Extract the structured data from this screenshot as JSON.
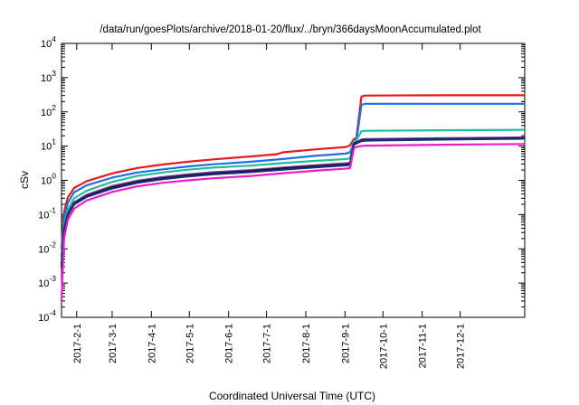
{
  "chart_data": {
    "type": "line",
    "title": "/data/run/goesPlots/archive/2018-01-20/flux/../bryn/366daysMoonAccumulated.plot",
    "xlabel": "Coordinated Universal Time (UTC)",
    "ylabel": "cSv",
    "yscale": "log",
    "ylim": [
      0.0001,
      10000
    ],
    "xlim_days": [
      0,
      366
    ],
    "start_date": "2017-01-20",
    "grid": false,
    "legend": "none",
    "y_ticks": [
      {
        "value": 0.0001,
        "base": "10",
        "exp": "-4"
      },
      {
        "value": 0.001,
        "base": "10",
        "exp": "-3"
      },
      {
        "value": 0.01,
        "base": "10",
        "exp": "-2"
      },
      {
        "value": 0.1,
        "base": "10",
        "exp": "-1"
      },
      {
        "value": 1,
        "base": "10",
        "exp": "0"
      },
      {
        "value": 10,
        "base": "10",
        "exp": "1"
      },
      {
        "value": 100,
        "base": "10",
        "exp": "2"
      },
      {
        "value": 1000,
        "base": "10",
        "exp": "3"
      },
      {
        "value": 10000,
        "base": "10",
        "exp": "4"
      }
    ],
    "x_ticks": [
      {
        "label": "2017-2-1",
        "day": 12
      },
      {
        "label": "2017-3-1",
        "day": 40
      },
      {
        "label": "2017-4-1",
        "day": 71
      },
      {
        "label": "2017-5-1",
        "day": 101
      },
      {
        "label": "2017-6-1",
        "day": 132
      },
      {
        "label": "2017-7-1",
        "day": 162
      },
      {
        "label": "2017-8-1",
        "day": 193
      },
      {
        "label": "2017-9-1",
        "day": 224
      },
      {
        "label": "2017-10-1",
        "day": 254
      },
      {
        "label": "2017-11-1",
        "day": 285
      },
      {
        "label": "2017-12-1",
        "day": 315
      }
    ],
    "series": [
      {
        "name": "red",
        "color": "#e41a1c",
        "x": [
          0,
          2,
          5,
          10,
          20,
          40,
          60,
          80,
          100,
          120,
          150,
          170,
          175,
          200,
          225,
          228,
          231,
          233,
          237,
          240,
          300,
          366
        ],
        "y": [
          0.01,
          0.12,
          0.32,
          0.6,
          0.95,
          1.6,
          2.3,
          2.9,
          3.5,
          4.1,
          5.0,
          5.8,
          6.6,
          8.0,
          9.4,
          10.5,
          16,
          17,
          280,
          300,
          305,
          305
        ]
      },
      {
        "name": "blue",
        "color": "#1f6fe0",
        "x": [
          0,
          2,
          5,
          10,
          20,
          40,
          60,
          80,
          100,
          120,
          150,
          175,
          200,
          225,
          228,
          231,
          233,
          237,
          240,
          300,
          366
        ],
        "y": [
          0.006,
          0.08,
          0.22,
          0.45,
          0.72,
          1.2,
          1.7,
          2.1,
          2.55,
          2.95,
          3.5,
          4.2,
          5.2,
          6.1,
          6.7,
          13,
          14,
          160,
          172,
          172,
          172
        ]
      },
      {
        "name": "teal",
        "color": "#1fbf99",
        "x": [
          0,
          2,
          5,
          10,
          20,
          40,
          60,
          80,
          100,
          120,
          150,
          175,
          200,
          225,
          228,
          231,
          233,
          237,
          240,
          300,
          366
        ],
        "y": [
          0.004,
          0.05,
          0.14,
          0.3,
          0.5,
          0.9,
          1.35,
          1.7,
          2.05,
          2.35,
          2.7,
          3.2,
          3.7,
          4.2,
          4.4,
          14,
          15,
          27,
          28,
          29,
          30
        ]
      },
      {
        "name": "purple",
        "color": "#7a3da8",
        "x": [
          0,
          2,
          5,
          10,
          20,
          40,
          60,
          80,
          100,
          120,
          150,
          175,
          200,
          225,
          228,
          231,
          233,
          237,
          240,
          300,
          366
        ],
        "y": [
          0.003,
          0.04,
          0.11,
          0.23,
          0.38,
          0.68,
          0.98,
          1.25,
          1.5,
          1.73,
          2.0,
          2.35,
          2.75,
          3.15,
          3.25,
          12,
          13,
          15.5,
          16,
          17,
          18
        ]
      },
      {
        "name": "black",
        "color": "#111111",
        "x": [
          0,
          2,
          5,
          10,
          20,
          40,
          60,
          80,
          100,
          120,
          150,
          175,
          200,
          225,
          228,
          231,
          233,
          237,
          240,
          300,
          366
        ],
        "y": [
          0.003,
          0.035,
          0.1,
          0.21,
          0.35,
          0.62,
          0.9,
          1.15,
          1.38,
          1.6,
          1.85,
          2.2,
          2.55,
          2.9,
          3.0,
          11.5,
          12.5,
          14.5,
          15,
          16,
          17
        ]
      },
      {
        "name": "navy",
        "color": "#1c2a80",
        "x": [
          0,
          2,
          5,
          10,
          20,
          40,
          60,
          80,
          100,
          120,
          150,
          175,
          200,
          225,
          228,
          231,
          233,
          237,
          240,
          300,
          366
        ],
        "y": [
          0.0028,
          0.032,
          0.095,
          0.2,
          0.33,
          0.58,
          0.85,
          1.08,
          1.3,
          1.5,
          1.75,
          2.05,
          2.4,
          2.75,
          2.85,
          11,
          12,
          14,
          14.5,
          15.5,
          16.5
        ]
      },
      {
        "name": "magenta",
        "color": "#ec1ec8",
        "x": [
          0,
          2,
          5,
          10,
          20,
          40,
          60,
          80,
          100,
          120,
          150,
          175,
          200,
          225,
          228,
          231,
          233,
          237,
          240,
          300,
          366
        ],
        "y": [
          0.0003,
          0.02,
          0.07,
          0.15,
          0.26,
          0.46,
          0.67,
          0.85,
          1.0,
          1.15,
          1.35,
          1.62,
          1.9,
          2.2,
          2.3,
          8.5,
          9.5,
          10,
          10.3,
          11,
          11.5
        ]
      }
    ]
  }
}
